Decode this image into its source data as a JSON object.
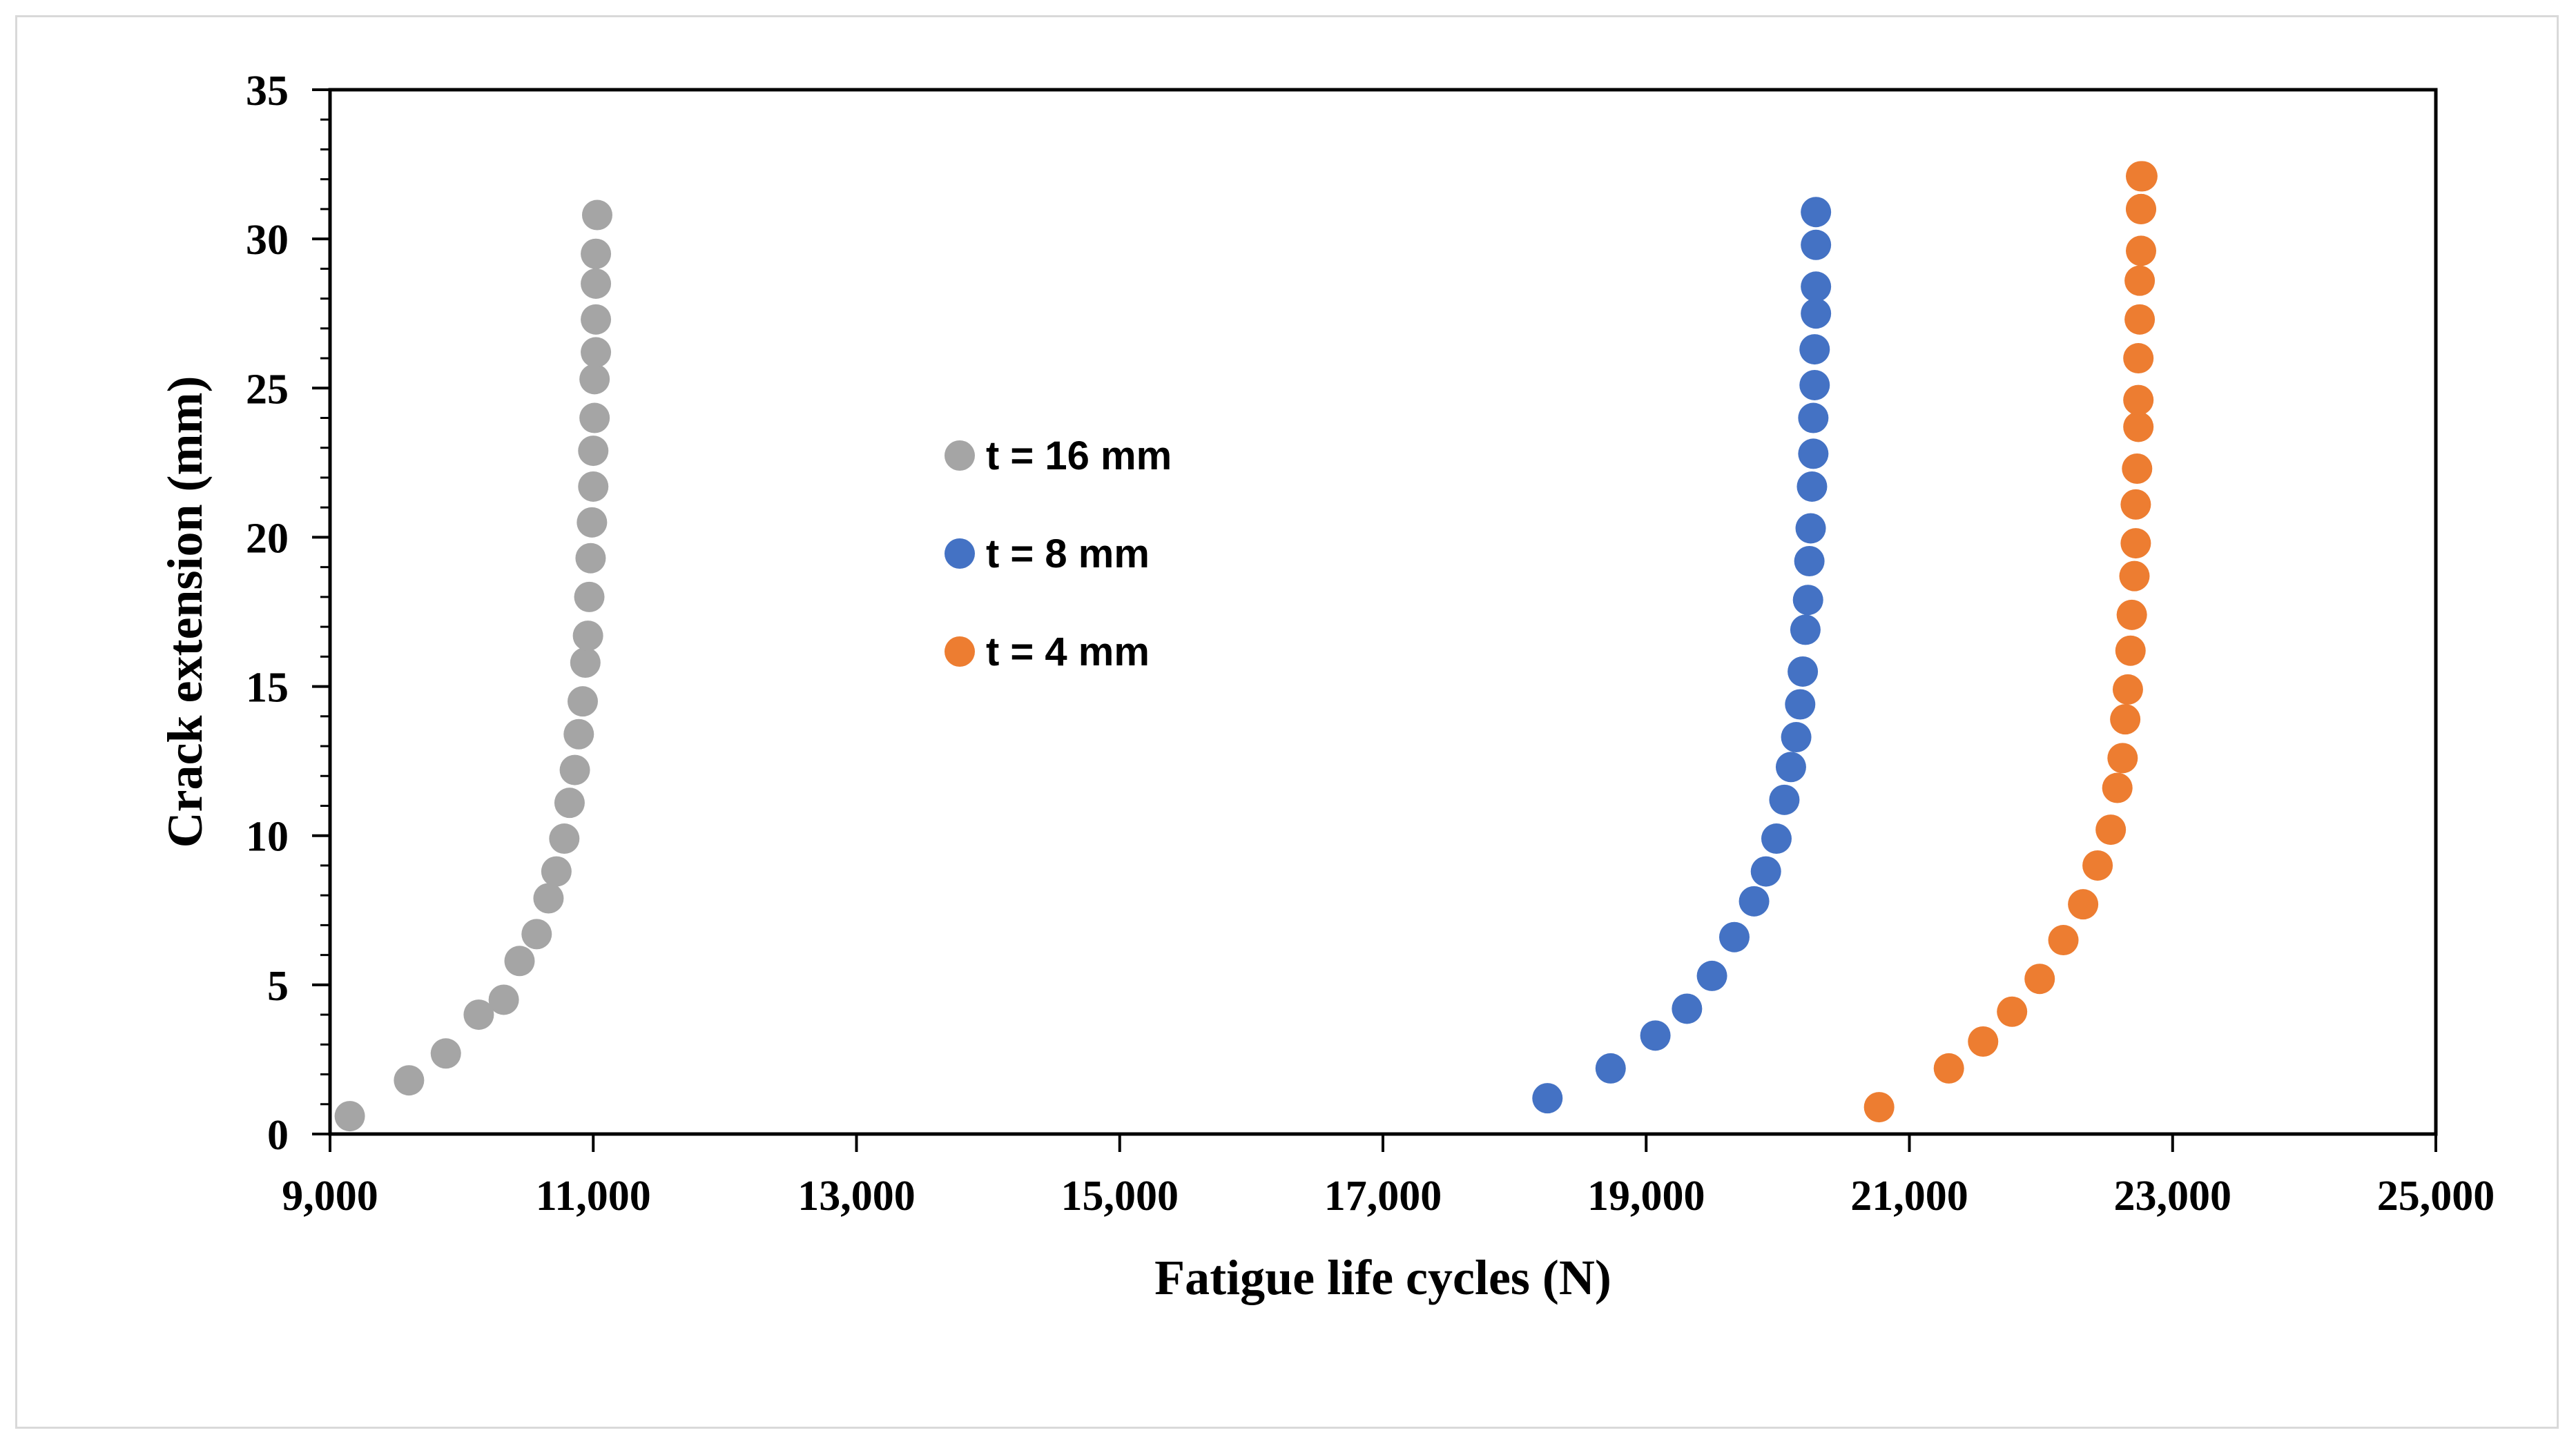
{
  "chart_data": {
    "type": "scatter",
    "title": "",
    "xlabel": "Fatigue life cycles (N)",
    "ylabel": "Crack extension (mm)",
    "xlim": [
      9000,
      25000
    ],
    "ylim": [
      0,
      35
    ],
    "xticks": [
      9000,
      11000,
      13000,
      15000,
      17000,
      19000,
      21000,
      23000,
      25000
    ],
    "xtick_labels": [
      "9,000",
      "11,000",
      "13,000",
      "15,000",
      "17,000",
      "19,000",
      "21,000",
      "23,000",
      "25,000"
    ],
    "yticks": [
      0,
      5,
      10,
      15,
      20,
      25,
      30,
      35
    ],
    "ytick_labels": [
      "0",
      "5",
      "10",
      "15",
      "20",
      "25",
      "30",
      "35"
    ],
    "grid": false,
    "legend_position": "center-left",
    "series": [
      {
        "name": "t = 16 mm",
        "color": "#a5a5a5",
        "x": [
          9150,
          9600,
          9880,
          10130,
          10320,
          10440,
          10570,
          10660,
          10720,
          10780,
          10820,
          10860,
          10890,
          10920,
          10940,
          10960,
          10970,
          10980,
          10990,
          11000,
          11000,
          11010,
          11010,
          11020,
          11020,
          11020,
          11020,
          11030
        ],
        "y": [
          0.6,
          1.8,
          2.7,
          4.0,
          4.5,
          5.8,
          6.7,
          7.9,
          8.8,
          9.9,
          11.1,
          12.2,
          13.4,
          14.5,
          15.8,
          16.7,
          18.0,
          19.3,
          20.5,
          21.7,
          22.9,
          24.0,
          25.3,
          26.2,
          27.3,
          28.5,
          29.5,
          30.8
        ]
      },
      {
        "name": "t = 8 mm",
        "color": "#4472c4",
        "x": [
          18250,
          18730,
          19070,
          19310,
          19500,
          19670,
          19820,
          19910,
          19990,
          20050,
          20100,
          20140,
          20170,
          20190,
          20210,
          20230,
          20240,
          20250,
          20260,
          20270,
          20270,
          20280,
          20280,
          20290,
          20290,
          20290,
          20290
        ],
        "y": [
          1.2,
          2.2,
          3.3,
          4.2,
          5.3,
          6.6,
          7.8,
          8.8,
          9.9,
          11.2,
          12.3,
          13.3,
          14.4,
          15.5,
          16.9,
          17.9,
          19.2,
          20.3,
          21.7,
          22.8,
          24.0,
          25.1,
          26.3,
          27.5,
          28.4,
          29.8,
          30.9
        ]
      },
      {
        "name": "t = 4 mm",
        "color": "#ed7d31",
        "x": [
          20770,
          21300,
          21560,
          21780,
          21990,
          22170,
          22320,
          22430,
          22530,
          22580,
          22620,
          22640,
          22660,
          22680,
          22690,
          22710,
          22720,
          22720,
          22730,
          22740,
          22740,
          22740,
          22750,
          22750,
          22760,
          22760,
          22760,
          22760,
          22770
        ],
        "y": [
          0.9,
          2.2,
          3.1,
          4.1,
          5.2,
          6.5,
          7.7,
          9.0,
          10.2,
          11.6,
          12.6,
          13.9,
          14.9,
          16.2,
          17.4,
          18.7,
          19.8,
          21.1,
          22.3,
          23.7,
          24.6,
          26.0,
          27.3,
          28.6,
          29.6,
          31.0,
          32.1,
          31.0,
          32.1
        ]
      }
    ]
  }
}
